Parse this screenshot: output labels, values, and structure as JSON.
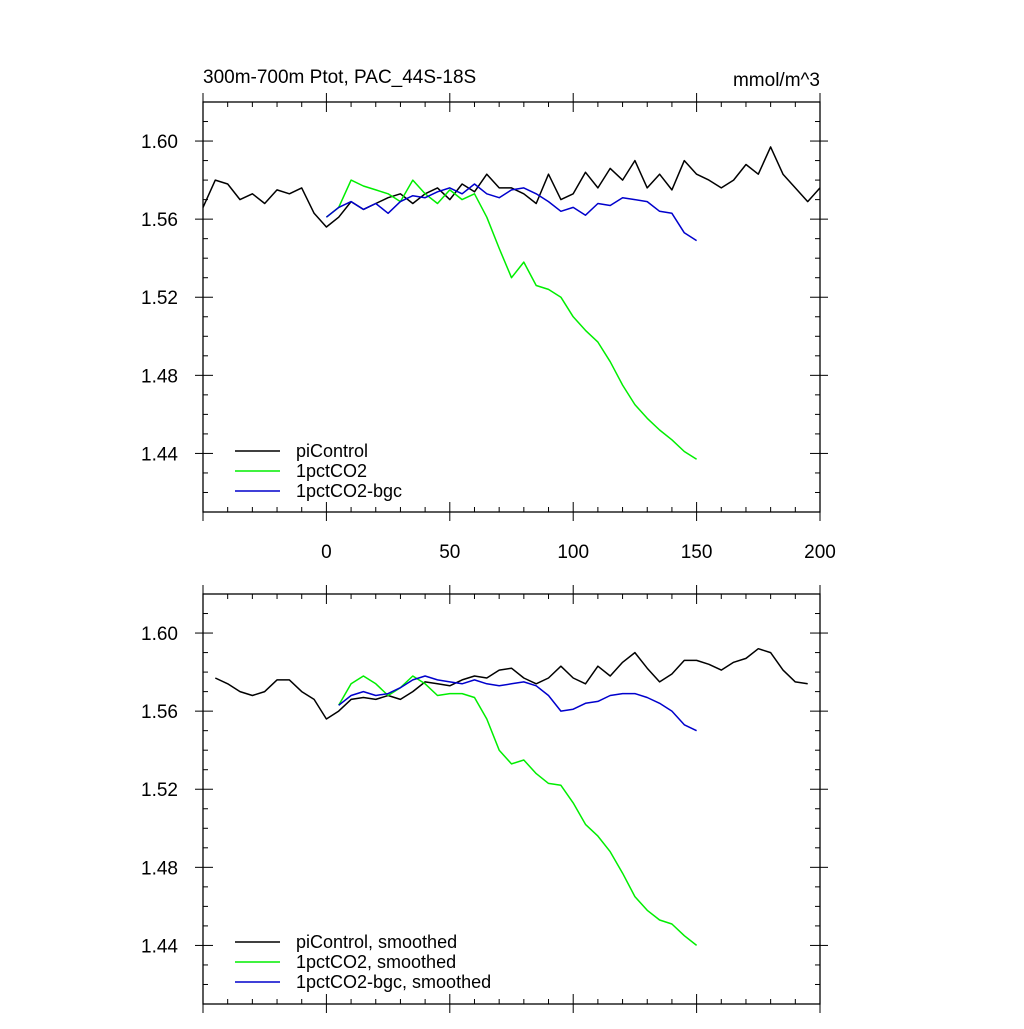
{
  "chart_data": [
    {
      "type": "line",
      "title": "300m-700m Ptot, PAC_44S-18S",
      "units": "mmol/m^3",
      "xlim": [
        -50,
        200
      ],
      "ylim": [
        1.41,
        1.62
      ],
      "xticks": [
        0,
        50,
        100,
        150,
        200
      ],
      "yticks": [
        1.44,
        1.48,
        1.52,
        1.56,
        1.6
      ],
      "xticklabels": [
        "0",
        "50",
        "100",
        "150",
        "200"
      ],
      "yticklabels": [
        "1.44",
        "1.48",
        "1.52",
        "1.56",
        "1.60"
      ],
      "legend_position": "bottom-left",
      "series": [
        {
          "name": "piControl",
          "color": "#000000",
          "x": [
            -50,
            -45,
            -40,
            -35,
            -30,
            -25,
            -20,
            -15,
            -10,
            -5,
            0,
            5,
            10,
            15,
            20,
            25,
            30,
            35,
            40,
            45,
            50,
            55,
            60,
            65,
            70,
            75,
            80,
            85,
            90,
            95,
            100,
            105,
            110,
            115,
            120,
            125,
            130,
            135,
            140,
            145,
            150,
            155,
            160,
            165,
            170,
            175,
            180,
            185,
            190,
            195,
            200
          ],
          "y": [
            1.566,
            1.58,
            1.578,
            1.57,
            1.573,
            1.568,
            1.575,
            1.573,
            1.576,
            1.563,
            1.556,
            1.561,
            1.569,
            1.565,
            1.568,
            1.571,
            1.573,
            1.568,
            1.573,
            1.576,
            1.57,
            1.578,
            1.574,
            1.583,
            1.576,
            1.576,
            1.573,
            1.568,
            1.583,
            1.57,
            1.573,
            1.584,
            1.576,
            1.586,
            1.58,
            1.59,
            1.576,
            1.583,
            1.575,
            1.59,
            1.583,
            1.58,
            1.576,
            1.58,
            1.588,
            1.583,
            1.597,
            1.583,
            1.576,
            1.569,
            1.576
          ]
        },
        {
          "name": "1pctCO2",
          "color": "#00ee00",
          "x": [
            0,
            5,
            10,
            15,
            20,
            25,
            30,
            35,
            40,
            45,
            50,
            55,
            60,
            65,
            70,
            75,
            80,
            85,
            90,
            95,
            100,
            105,
            110,
            115,
            120,
            125,
            130,
            135,
            140,
            145,
            150
          ],
          "y": [
            1.561,
            1.566,
            1.58,
            1.577,
            1.575,
            1.573,
            1.569,
            1.58,
            1.573,
            1.568,
            1.575,
            1.57,
            1.573,
            1.561,
            1.545,
            1.53,
            1.538,
            1.526,
            1.524,
            1.52,
            1.51,
            1.503,
            1.497,
            1.487,
            1.475,
            1.465,
            1.458,
            1.452,
            1.447,
            1.441,
            1.437
          ]
        },
        {
          "name": "1pctCO2-bgc",
          "color": "#0000cc",
          "x": [
            0,
            5,
            10,
            15,
            20,
            25,
            30,
            35,
            40,
            45,
            50,
            55,
            60,
            65,
            70,
            75,
            80,
            85,
            90,
            95,
            100,
            105,
            110,
            115,
            120,
            125,
            130,
            135,
            140,
            145,
            150
          ],
          "y": [
            1.561,
            1.566,
            1.569,
            1.565,
            1.568,
            1.563,
            1.569,
            1.572,
            1.571,
            1.574,
            1.576,
            1.573,
            1.578,
            1.573,
            1.571,
            1.575,
            1.576,
            1.573,
            1.569,
            1.564,
            1.566,
            1.562,
            1.568,
            1.567,
            1.571,
            1.57,
            1.569,
            1.564,
            1.563,
            1.553,
            1.549
          ]
        }
      ]
    },
    {
      "type": "line",
      "xlim": [
        -50,
        200
      ],
      "ylim": [
        1.41,
        1.62
      ],
      "xticks": [
        0,
        50,
        100,
        150,
        200
      ],
      "yticks": [
        1.44,
        1.48,
        1.52,
        1.56,
        1.6
      ],
      "yticklabels": [
        "1.44",
        "1.48",
        "1.52",
        "1.56",
        "1.60"
      ],
      "legend_position": "bottom-left",
      "series": [
        {
          "name": "piControl, smoothed",
          "color": "#000000",
          "x": [
            -45,
            -40,
            -35,
            -30,
            -25,
            -20,
            -15,
            -10,
            -5,
            0,
            5,
            10,
            15,
            20,
            25,
            30,
            35,
            40,
            45,
            50,
            55,
            60,
            65,
            70,
            75,
            80,
            85,
            90,
            95,
            100,
            105,
            110,
            115,
            120,
            125,
            130,
            135,
            140,
            145,
            150,
            155,
            160,
            165,
            170,
            175,
            180,
            185,
            190,
            195
          ],
          "y": [
            1.577,
            1.574,
            1.57,
            1.568,
            1.57,
            1.576,
            1.576,
            1.57,
            1.566,
            1.556,
            1.56,
            1.566,
            1.567,
            1.566,
            1.568,
            1.566,
            1.57,
            1.575,
            1.574,
            1.573,
            1.576,
            1.578,
            1.577,
            1.581,
            1.582,
            1.577,
            1.574,
            1.577,
            1.583,
            1.577,
            1.574,
            1.583,
            1.578,
            1.585,
            1.59,
            1.582,
            1.575,
            1.579,
            1.586,
            1.586,
            1.584,
            1.581,
            1.585,
            1.587,
            1.592,
            1.59,
            1.581,
            1.575,
            1.574
          ]
        },
        {
          "name": "1pctCO2, smoothed",
          "color": "#00ee00",
          "x": [
            5,
            10,
            15,
            20,
            25,
            30,
            35,
            40,
            45,
            50,
            55,
            60,
            65,
            70,
            75,
            80,
            85,
            90,
            95,
            100,
            105,
            110,
            115,
            120,
            125,
            130,
            135,
            140,
            145,
            150
          ],
          "y": [
            1.563,
            1.574,
            1.578,
            1.574,
            1.568,
            1.572,
            1.578,
            1.574,
            1.568,
            1.569,
            1.569,
            1.567,
            1.556,
            1.54,
            1.533,
            1.535,
            1.528,
            1.523,
            1.522,
            1.513,
            1.502,
            1.496,
            1.488,
            1.477,
            1.465,
            1.458,
            1.453,
            1.451,
            1.445,
            1.44
          ]
        },
        {
          "name": "1pctCO2-bgc, smoothed",
          "color": "#0000cc",
          "x": [
            5,
            10,
            15,
            20,
            25,
            30,
            35,
            40,
            45,
            50,
            55,
            60,
            65,
            70,
            75,
            80,
            85,
            90,
            95,
            100,
            105,
            110,
            115,
            120,
            125,
            130,
            135,
            140,
            145,
            150
          ],
          "y": [
            1.563,
            1.568,
            1.57,
            1.568,
            1.569,
            1.572,
            1.576,
            1.578,
            1.576,
            1.575,
            1.574,
            1.576,
            1.574,
            1.573,
            1.574,
            1.575,
            1.573,
            1.568,
            1.56,
            1.561,
            1.564,
            1.565,
            1.568,
            1.569,
            1.569,
            1.567,
            1.564,
            1.56,
            1.553,
            1.55
          ]
        }
      ]
    }
  ]
}
